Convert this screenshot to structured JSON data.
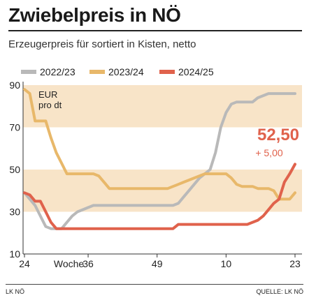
{
  "title": "Zwiebelpreis in NÖ",
  "subtitle": "Erzeugerpreis für sortiert in Kisten, netto",
  "footer": {
    "source_left": "LK NÖ",
    "source_right": "QUELLE: LK NÖ"
  },
  "colors": {
    "s2223": "#b9b9b9",
    "s2324": "#e8b86a",
    "s2425": "#e0624c",
    "band": "#f8e4c8",
    "highlight": "#e0624c"
  },
  "chart_data": {
    "type": "line",
    "unit_label": [
      "EUR",
      "pro dt"
    ],
    "xlabel": "Woche",
    "ylim": [
      10,
      90
    ],
    "y_ticks": [
      10,
      30,
      50,
      70,
      90
    ],
    "x_ticks": [
      {
        "label": "24",
        "i": 0
      },
      {
        "label": "36",
        "i": 12
      },
      {
        "label": "49",
        "i": 25
      },
      {
        "label": "10",
        "i": 38
      },
      {
        "label": "23",
        "i": 51
      }
    ],
    "x_count": 52,
    "bands": [
      [
        30,
        50
      ],
      [
        70,
        90
      ]
    ],
    "annotation": {
      "value": "52,50",
      "change": "+ 5,00"
    },
    "series": [
      {
        "name": "2022/23",
        "key": "s2223",
        "values": [
          39,
          36,
          33,
          28,
          23,
          22,
          22,
          22,
          25,
          28,
          30,
          31,
          32,
          33,
          33,
          33,
          33,
          33,
          33,
          33,
          33,
          33,
          33,
          33,
          33,
          33,
          33,
          33,
          33,
          34,
          37,
          40,
          43,
          46,
          48,
          50,
          58,
          70,
          77,
          81,
          82,
          82,
          82,
          82,
          84,
          85,
          86,
          86,
          86,
          86,
          86,
          86
        ]
      },
      {
        "name": "2023/24",
        "key": "s2324",
        "values": [
          88,
          86,
          73,
          73,
          73,
          65,
          58,
          53,
          48,
          48,
          48,
          48,
          48,
          48,
          47,
          44,
          41,
          41,
          41,
          41,
          41,
          41,
          41,
          41,
          41,
          41,
          41,
          41,
          42,
          43,
          44,
          45,
          46,
          47,
          48,
          48,
          48,
          48,
          48,
          46,
          43,
          42,
          42,
          42,
          41,
          41,
          41,
          40,
          36,
          36,
          36,
          39
        ]
      },
      {
        "name": "2024/25",
        "key": "s2425",
        "values": [
          39,
          38,
          35,
          35,
          30,
          25,
          22,
          22,
          22,
          22,
          22,
          22,
          22,
          22,
          22,
          22,
          22,
          22,
          22,
          22,
          22,
          22,
          22,
          22,
          22,
          22,
          22,
          22,
          22,
          24,
          24,
          24,
          24,
          24,
          24,
          24,
          24,
          24,
          24,
          24,
          24,
          24,
          24,
          25,
          26,
          28,
          31,
          34,
          36,
          44,
          48,
          52.5
        ]
      }
    ]
  }
}
